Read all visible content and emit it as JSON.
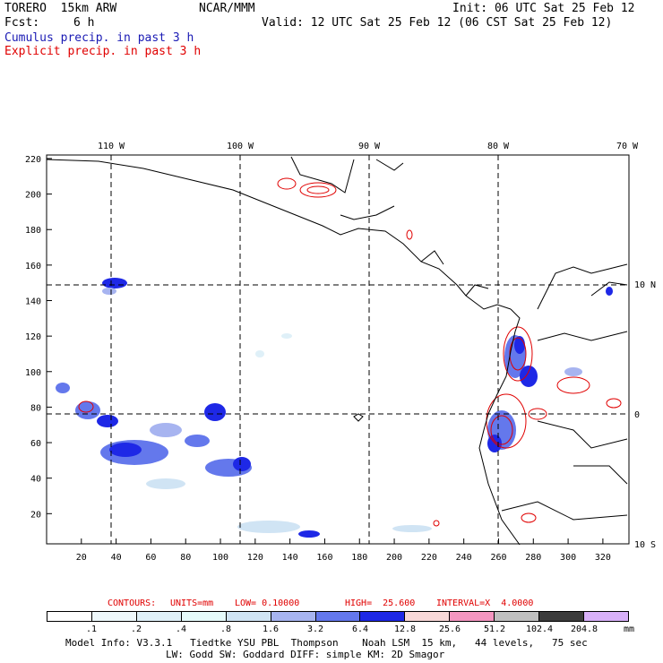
{
  "header": {
    "model": "TORERO  15km ARW",
    "org": "NCAR/MMM",
    "init": "Init: 06 UTC Sat 25 Feb 12",
    "fcst_label": "Fcst:",
    "fcst_value": "6 h",
    "valid": "Valid: 12 UTC Sat 25 Feb 12 (06 CST Sat 25 Feb 12)",
    "cumulus_label": "Cumulus precip. in past 3 h",
    "explicit_label": "Explicit precip. in past 3 h"
  },
  "colors": {
    "cumulus": "#1a1ab4",
    "explicit": "#e00000",
    "grid": "#000000"
  },
  "map": {
    "top_lon_labels": [
      "110 W",
      "100 W",
      "90 W",
      "80 W",
      "70 W"
    ],
    "right_lat_labels": [
      "10 N",
      "0",
      "10 S"
    ],
    "y_ticks": [
      "220",
      "200",
      "180",
      "160",
      "140",
      "120",
      "100",
      "80",
      "60",
      "40",
      "20"
    ],
    "x_ticks": [
      "20",
      "40",
      "60",
      "80",
      "100",
      "120",
      "140",
      "160",
      "180",
      "200",
      "220",
      "240",
      "260",
      "280",
      "300",
      "320"
    ],
    "grid_x_range": [
      0,
      335
    ],
    "grid_y_range": [
      3,
      222
    ]
  },
  "contours_line": {
    "contours": "CONTOURS:",
    "units": "UNITS=mm",
    "low": "LOW= 0.10000",
    "high": "HIGH=  25.600",
    "interval": "INTERVAL=X  4.0000"
  },
  "legend": {
    "colors": [
      "#ffffff",
      "#eef8fb",
      "#dff0f8",
      "#e6fbfb",
      "#d0e4f4",
      "#a7b4f0",
      "#6478ec",
      "#1e28e6",
      "#f8d8d8",
      "#f496c0",
      "#c0c0c0",
      "#3c3c3c",
      "#d8b0f8"
    ],
    "labels": [
      ".1",
      ".2",
      ".4",
      ".8",
      "1.6",
      "3.2",
      "6.4",
      "12.8",
      "25.6",
      "51.2",
      "102.4",
      "204.8"
    ],
    "unit": "mm"
  },
  "footer": {
    "line1": "Model Info: V3.3.1   Tiedtke YSU PBL  Thompson    Noah LSM  15 km,   44 levels,   75 sec",
    "line2": "LW: Godd SW: Goddard DIFF: simple KM: 2D Smagor"
  }
}
